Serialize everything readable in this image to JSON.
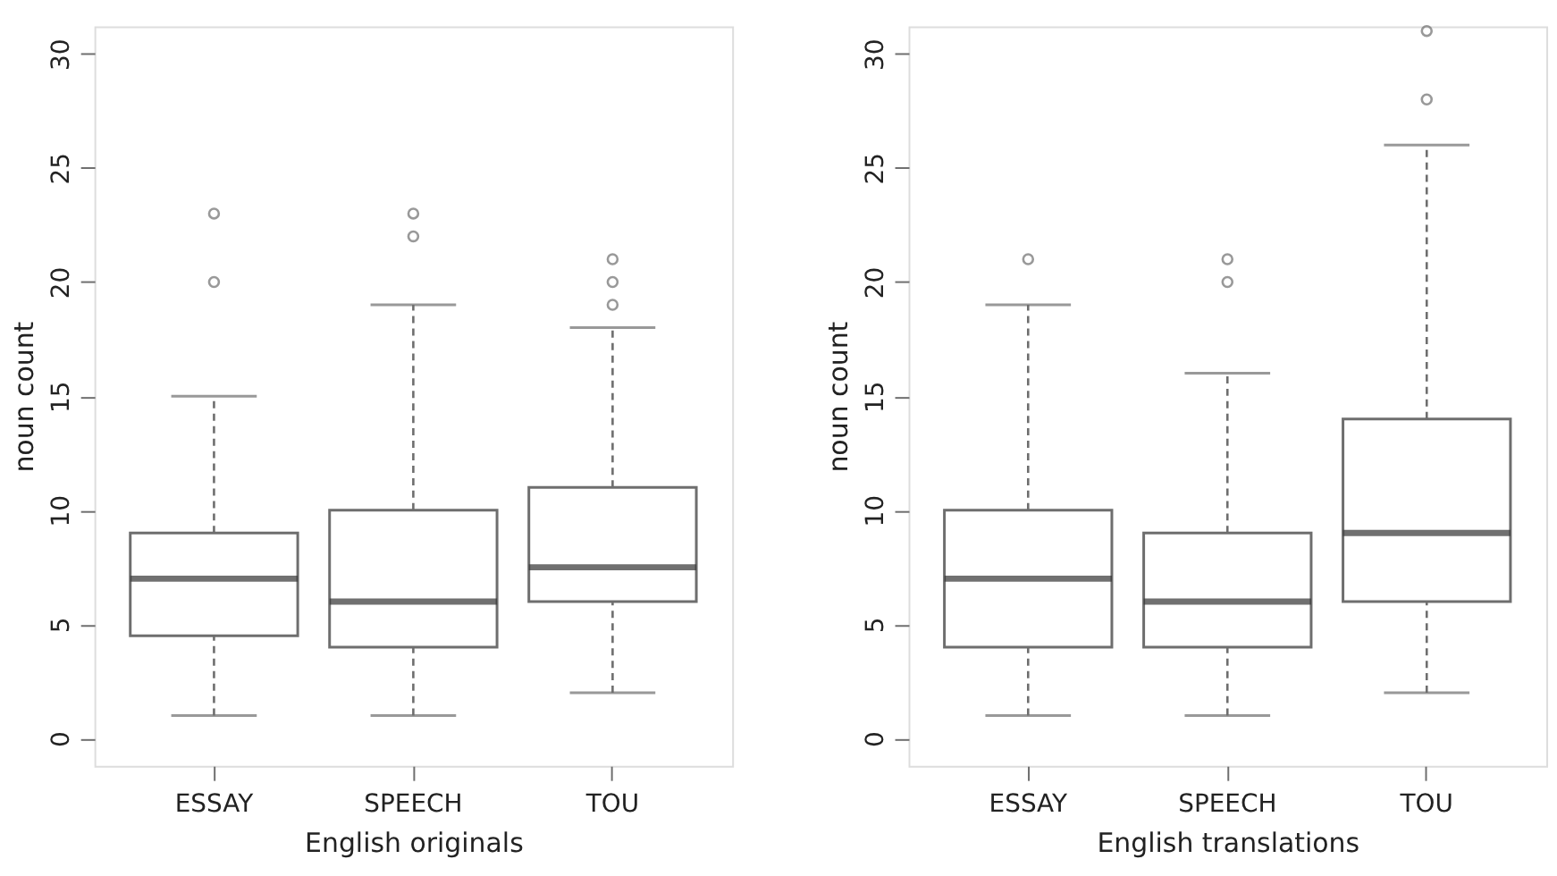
{
  "chart_data": [
    {
      "type": "box",
      "xlabel": "English originals",
      "ylabel": "noun count",
      "categories": [
        "ESSAY",
        "SPEECH",
        "TOU"
      ],
      "ylim": [
        -1.2,
        31.2
      ],
      "yticks": [
        0,
        5,
        10,
        15,
        20,
        25,
        30
      ],
      "grid": false,
      "boxes": [
        {
          "low": 1,
          "q1": 4.5,
          "median": 7,
          "q3": 9,
          "high": 15,
          "outliers": [
            20,
            23
          ]
        },
        {
          "low": 1,
          "q1": 4,
          "median": 6,
          "q3": 10,
          "high": 19,
          "outliers": [
            22,
            23
          ]
        },
        {
          "low": 2,
          "q1": 6,
          "median": 7.5,
          "q3": 11,
          "high": 18,
          "outliers": [
            19,
            20,
            21
          ]
        }
      ]
    },
    {
      "type": "box",
      "xlabel": "English translations",
      "ylabel": "noun count",
      "categories": [
        "ESSAY",
        "SPEECH",
        "TOU"
      ],
      "ylim": [
        -1.2,
        31.2
      ],
      "yticks": [
        0,
        5,
        10,
        15,
        20,
        25,
        30
      ],
      "grid": false,
      "boxes": [
        {
          "low": 1,
          "q1": 4,
          "median": 7,
          "q3": 10,
          "high": 19,
          "outliers": [
            21
          ]
        },
        {
          "low": 1,
          "q1": 4,
          "median": 6,
          "q3": 9,
          "high": 16,
          "outliers": [
            20,
            21
          ]
        },
        {
          "low": 2,
          "q1": 6,
          "median": 9,
          "q3": 14,
          "high": 26,
          "outliers": [
            28,
            31
          ]
        }
      ]
    }
  ]
}
